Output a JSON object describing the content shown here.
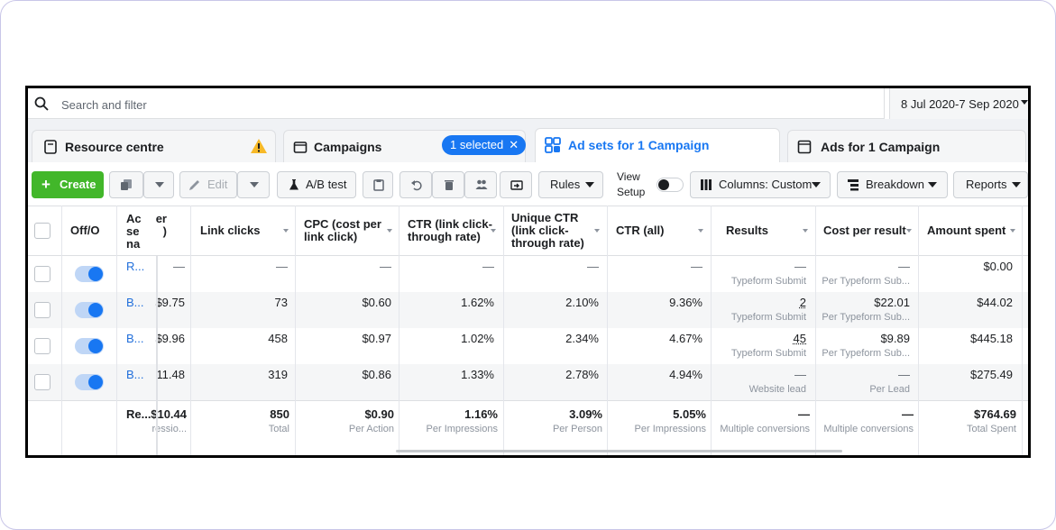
{
  "search": {
    "placeholder": "Search and filter"
  },
  "date_range": "8 Jul 2020-7 Sep 2020",
  "tabs": [
    {
      "label": "Resource centre",
      "icon": "document-icon"
    },
    {
      "label": "Campaigns",
      "icon": "folder-icon",
      "pill": "1 selected"
    },
    {
      "label": "Ad sets for 1 Campaign",
      "icon": "grid-icon",
      "active": true
    },
    {
      "label": "Ads for 1 Campaign",
      "icon": "ad-icon"
    }
  ],
  "toolbar": {
    "create": "Create",
    "edit": "Edit",
    "ab_test": "A/B test",
    "rules": "Rules",
    "view_setup_1": "View",
    "view_setup_2": "Setup",
    "columns": "Columns: Custom",
    "breakdown": "Breakdown",
    "reports": "Reports"
  },
  "colors": {
    "accent": "#1877f2",
    "create": "#42b72a",
    "warning": "#f7b928"
  },
  "headers": {
    "offon": "Off/O",
    "adset": [
      "Ac",
      "se",
      "na"
    ],
    "cut": [
      "er",
      ")"
    ],
    "link_clicks": "Link clicks",
    "cpc": [
      "CPC (cost per",
      "link click)"
    ],
    "ctr_link": [
      "CTR (link click-",
      "through rate)"
    ],
    "unique_ctr": [
      "Unique CTR",
      "(link click-",
      "through rate)"
    ],
    "ctr_all": "CTR (all)",
    "results": "Results",
    "cost_per_result": "Cost per result",
    "amount_spent": "Amount spent"
  },
  "rows": [
    {
      "name": "R...",
      "cut": "",
      "link_clicks": "—",
      "cpc": "—",
      "ctr_link": "—",
      "unique_ctr": "—",
      "ctr_all": "—",
      "results": "—",
      "results_sub": "Typeform Submit",
      "cpr": "—",
      "cpr_sub": "Per Typeform Sub...",
      "spent": "$0.00"
    },
    {
      "name": "B...",
      "cut": "$9.75",
      "link_clicks": "73",
      "cpc": "$0.60",
      "ctr_link": "1.62%",
      "unique_ctr": "2.10%",
      "ctr_all": "9.36%",
      "results": "2",
      "results_sub": "Typeform Submit",
      "cpr": "$22.01",
      "cpr_sub": "Per Typeform Sub...",
      "spent": "$44.02"
    },
    {
      "name": "B...",
      "cut": "$9.96",
      "link_clicks": "458",
      "cpc": "$0.97",
      "ctr_link": "1.02%",
      "unique_ctr": "2.34%",
      "ctr_all": "4.67%",
      "results": "45",
      "results_sub": "Typeform Submit",
      "cpr": "$9.89",
      "cpr_sub": "Per Typeform Sub...",
      "spent": "$445.18"
    },
    {
      "name": "B...",
      "cut": "11.48",
      "link_clicks": "319",
      "cpc": "$0.86",
      "ctr_link": "1.33%",
      "unique_ctr": "2.78%",
      "ctr_all": "4.94%",
      "results": "—",
      "results_sub": "Website lead",
      "cpr": "—",
      "cpr_sub": "Per Lead",
      "spent": "$275.49"
    }
  ],
  "totals": {
    "name": "Re...",
    "cut": "$10.44",
    "cut_sub": "ressio...",
    "link_clicks": "850",
    "link_clicks_sub": "Total",
    "cpc": "$0.90",
    "cpc_sub": "Per Action",
    "ctr_link": "1.16%",
    "ctr_link_sub": "Per Impressions",
    "unique_ctr": "3.09%",
    "unique_ctr_sub": "Per Person",
    "ctr_all": "5.05%",
    "ctr_all_sub": "Per Impressions",
    "results": "—",
    "results_sub": "Multiple conversions",
    "cpr": "—",
    "cpr_sub": "Multiple conversions",
    "spent": "$764.69",
    "spent_sub": "Total Spent"
  }
}
